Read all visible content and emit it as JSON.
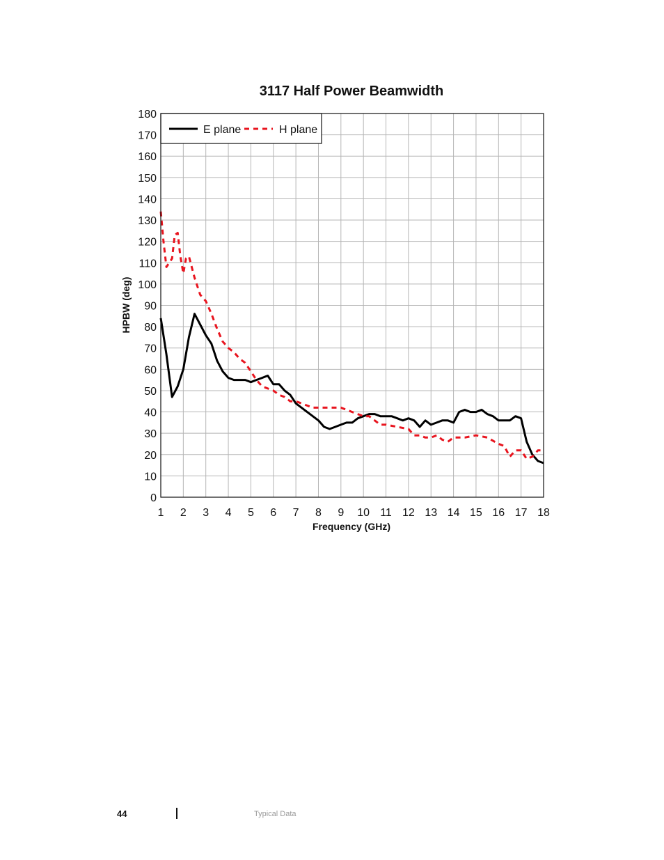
{
  "chart_data": {
    "type": "line",
    "title": "3117 Half Power Beamwidth",
    "xlabel": "Frequency (GHz)",
    "ylabel": "HPBW (deg)",
    "xlim": [
      1,
      18
    ],
    "ylim": [
      0,
      180
    ],
    "xticks": [
      1,
      2,
      3,
      4,
      5,
      6,
      7,
      8,
      9,
      10,
      11,
      12,
      13,
      14,
      15,
      16,
      17,
      18
    ],
    "yticks": [
      0,
      10,
      20,
      30,
      40,
      50,
      60,
      70,
      80,
      90,
      100,
      110,
      120,
      130,
      140,
      150,
      160,
      170,
      180
    ],
    "grid": true,
    "legend_position": "top-left",
    "series": [
      {
        "name": "E plane",
        "color": "#000000",
        "style": "solid",
        "x": [
          1,
          1.25,
          1.5,
          1.75,
          2,
          2.25,
          2.5,
          2.75,
          3,
          3.25,
          3.5,
          3.75,
          4,
          4.25,
          4.5,
          4.75,
          5,
          5.25,
          5.5,
          5.75,
          6,
          6.25,
          6.5,
          6.75,
          7,
          7.25,
          7.5,
          7.75,
          8,
          8.25,
          8.5,
          8.75,
          9,
          9.25,
          9.5,
          9.75,
          10,
          10.25,
          10.5,
          10.75,
          11,
          11.25,
          11.5,
          11.75,
          12,
          12.25,
          12.5,
          12.75,
          13,
          13.25,
          13.5,
          13.75,
          14,
          14.25,
          14.5,
          14.75,
          15,
          15.25,
          15.5,
          15.75,
          16,
          16.25,
          16.5,
          16.75,
          17,
          17.25,
          17.5,
          17.75,
          18
        ],
        "y": [
          84,
          67,
          47,
          52,
          60,
          75,
          86,
          81,
          76,
          72,
          64,
          59,
          56,
          55,
          55,
          55,
          54,
          55,
          56,
          57,
          53,
          53,
          50,
          48,
          44,
          42,
          40,
          38,
          36,
          33,
          32,
          33,
          34,
          35,
          35,
          37,
          38,
          39,
          39,
          38,
          38,
          38,
          37,
          36,
          37,
          36,
          33,
          36,
          34,
          35,
          36,
          36,
          35,
          40,
          41,
          40,
          40,
          41,
          39,
          38,
          36,
          36,
          36,
          38,
          37,
          26,
          20,
          17,
          16
        ]
      },
      {
        "name": "H plane",
        "color": "#e8141e",
        "style": "dashed",
        "x": [
          1,
          1.12,
          1.25,
          1.5,
          1.62,
          1.75,
          1.87,
          2,
          2.12,
          2.25,
          2.5,
          2.75,
          3,
          3.25,
          3.5,
          3.75,
          4,
          4.25,
          4.5,
          4.75,
          5,
          5.25,
          5.5,
          5.75,
          6,
          6.25,
          6.5,
          6.75,
          7,
          7.25,
          7.5,
          7.75,
          8,
          8.5,
          9,
          9.5,
          10,
          10.25,
          10.5,
          10.75,
          11,
          11.5,
          12,
          12.25,
          12.5,
          12.75,
          13,
          13.25,
          13.5,
          13.75,
          14,
          14.5,
          15,
          15.5,
          16,
          16.25,
          16.5,
          16.75,
          17,
          17.25,
          17.5,
          17.75,
          18
        ],
        "y": [
          134,
          120,
          108,
          112,
          123,
          124,
          113,
          105,
          112,
          113,
          103,
          95,
          92,
          86,
          79,
          73,
          70,
          68,
          65,
          63,
          59,
          55,
          52,
          51,
          50,
          48,
          47,
          45,
          45,
          44,
          43,
          42,
          42,
          42,
          42,
          40,
          38,
          38,
          36,
          34,
          34,
          33,
          32,
          29,
          29,
          28,
          28,
          29,
          27,
          26,
          28,
          28,
          29,
          28,
          25,
          24,
          19,
          22,
          22,
          18,
          19,
          22,
          22
        ]
      }
    ]
  },
  "footer": {
    "page_number": "44",
    "section": "Typical Data"
  }
}
